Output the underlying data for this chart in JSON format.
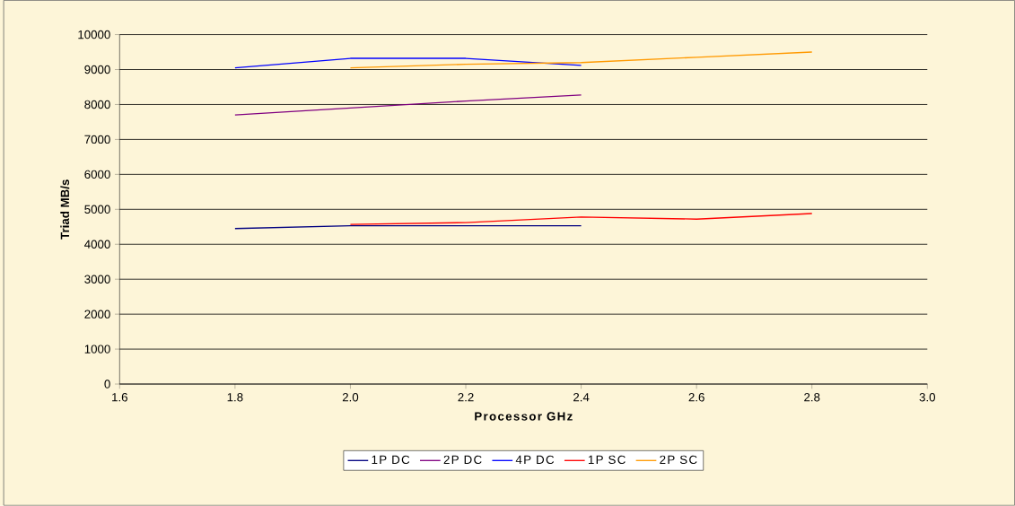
{
  "chart_data": {
    "type": "line",
    "xlabel": "Processor GHz",
    "ylabel": "Triad MB/s",
    "xlim": [
      1.6,
      3.0
    ],
    "xticks": [
      1.6,
      1.8,
      {
        "value": 2.0,
        "label": "2.0"
      },
      2.2,
      2.4,
      2.6,
      2.8,
      {
        "value": 3.0,
        "label": "3.0"
      }
    ],
    "ylim": [
      0,
      10000
    ],
    "yticks": [
      0,
      1000,
      2000,
      3000,
      4000,
      5000,
      6000,
      7000,
      8000,
      9000,
      10000
    ],
    "grid": "y",
    "legend": "bottom",
    "marker": "none",
    "line_style": "solid",
    "series": [
      {
        "name": "1P DC",
        "color": "#000080",
        "x": [
          1.8,
          2.0,
          2.2,
          2.4
        ],
        "values": [
          4450,
          4530,
          4530,
          4530
        ]
      },
      {
        "name": "2P DC",
        "color": "#800080",
        "x": [
          1.8,
          2.0,
          2.2,
          2.4
        ],
        "values": [
          7700,
          7900,
          8100,
          8270
        ]
      },
      {
        "name": "4P DC",
        "color": "#0000ff",
        "x": [
          1.8,
          2.0,
          2.2,
          2.4
        ],
        "values": [
          9050,
          9320,
          9320,
          9120
        ]
      },
      {
        "name": "1P SC",
        "color": "#ff0000",
        "x": [
          2.0,
          2.2,
          2.4,
          2.6,
          2.8
        ],
        "values": [
          4570,
          4620,
          4780,
          4720,
          4880
        ]
      },
      {
        "name": "2P SC",
        "color": "#ff9900",
        "x": [
          2.0,
          2.2,
          2.4,
          2.6,
          2.8
        ],
        "values": [
          9050,
          9150,
          9200,
          9350,
          9500
        ]
      }
    ]
  }
}
